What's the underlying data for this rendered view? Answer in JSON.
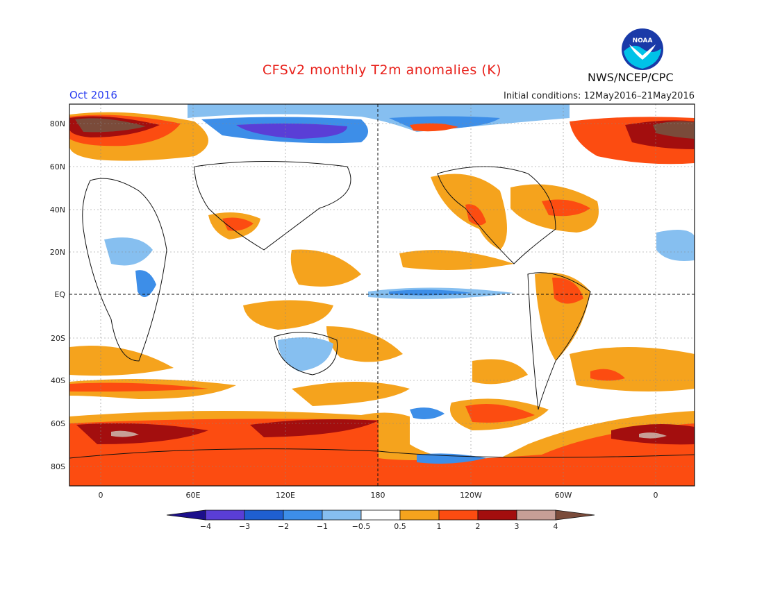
{
  "header": {
    "title": "CFSv2 monthly T2m anomalies (K)",
    "period": "Oct 2016",
    "initial_conditions": "Initial conditions: 12May2016–21May2016",
    "agency": "NWS/NCEP/CPC",
    "logo_text": "NOAA"
  },
  "axes": {
    "lat_labels": [
      "80N",
      "60N",
      "40N",
      "20N",
      "EQ",
      "20S",
      "40S",
      "60S",
      "80S"
    ],
    "lon_labels": [
      "0",
      "60E",
      "120E",
      "180",
      "120W",
      "60W",
      "0"
    ]
  },
  "colorbar": {
    "ticks": [
      "−4",
      "−3",
      "−2",
      "−1",
      "−0.5",
      "0.5",
      "1",
      "2",
      "3",
      "4"
    ],
    "colors": [
      "#1c0f8c",
      "#5a3ed6",
      "#1f5fd1",
      "#3d8ee8",
      "#86bff0",
      "#ffffff",
      "#f5a31d",
      "#fc4c11",
      "#a30e0e",
      "#c79f96",
      "#7a4b3a"
    ]
  }
}
